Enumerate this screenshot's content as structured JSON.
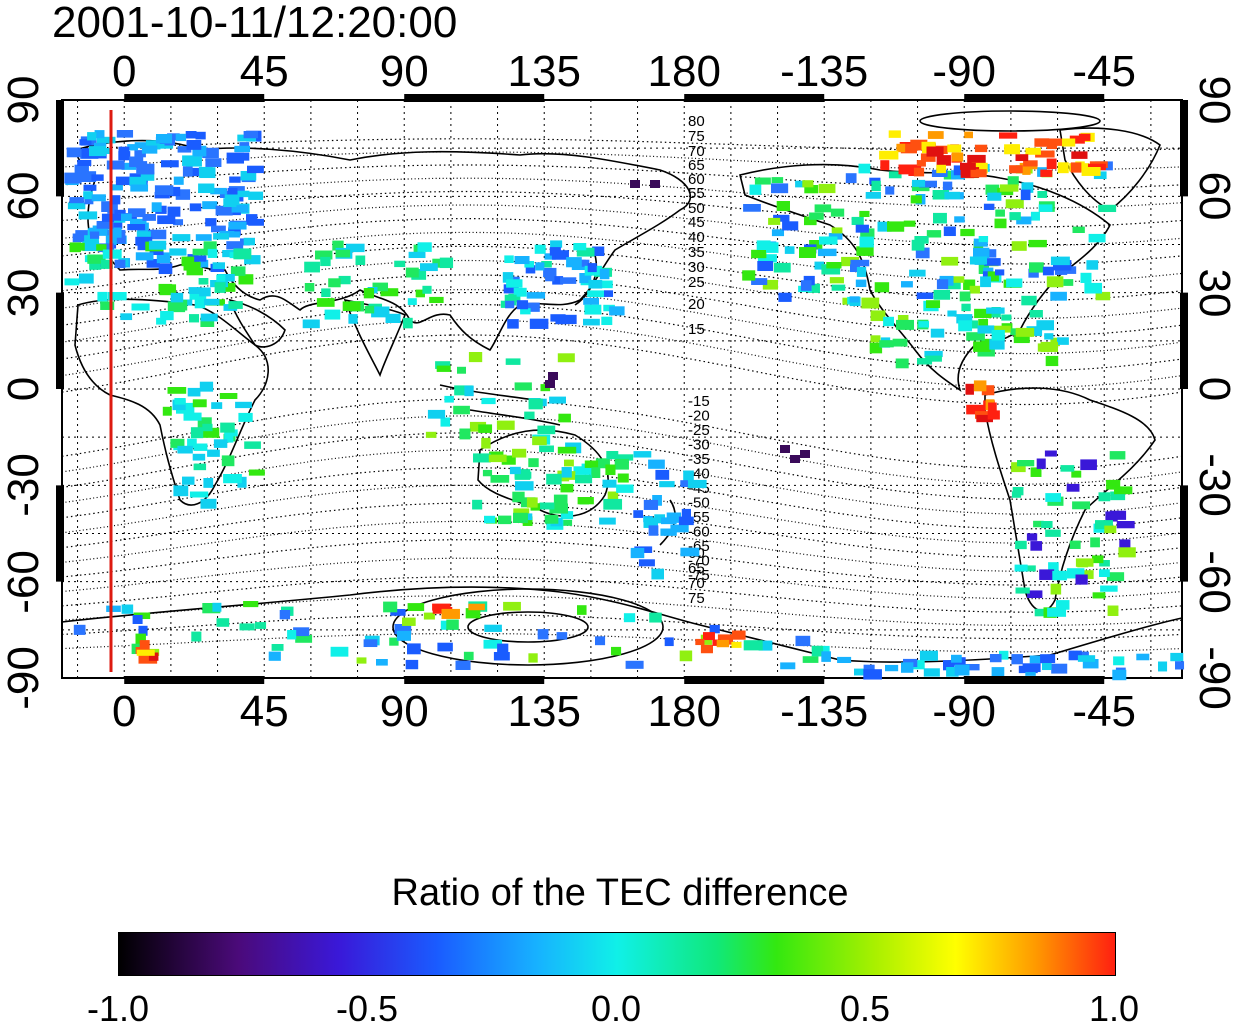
{
  "timestamp": "2001-10-11/12:20:00",
  "x_ticks": [
    "0",
    "45",
    "90",
    "135",
    "180",
    "-135",
    "-90",
    "-45"
  ],
  "y_ticks": [
    "90",
    "60",
    "30",
    "0",
    "-30",
    "-60",
    "-90"
  ],
  "contour_labels_north": [
    "80",
    "75",
    "70",
    "65",
    "60",
    "55",
    "50",
    "45",
    "40",
    "35",
    "30",
    "25",
    "20",
    "15"
  ],
  "contour_labels_south": [
    "-15",
    "-20",
    "-25",
    "-30",
    "-35",
    "-40",
    "-45",
    "-50",
    "-55",
    "-60",
    "-65",
    "-70",
    "-75"
  ],
  "contour_labels_south_far": [
    "60",
    "65",
    "70",
    "75"
  ],
  "colorbar": {
    "title": "Ratio of the TEC difference",
    "ticks": [
      "-1.0",
      "-0.5",
      "0.0",
      "0.5",
      "1.0"
    ],
    "min": -1.0,
    "max": 1.0
  },
  "map": {
    "projection": "equirectangular",
    "lon_range": [
      -20,
      340
    ],
    "lat_range": [
      -90,
      90
    ],
    "grid": true,
    "colors": {
      "terminator_line": "#dd1a10",
      "coastline": "#000000"
    }
  }
}
